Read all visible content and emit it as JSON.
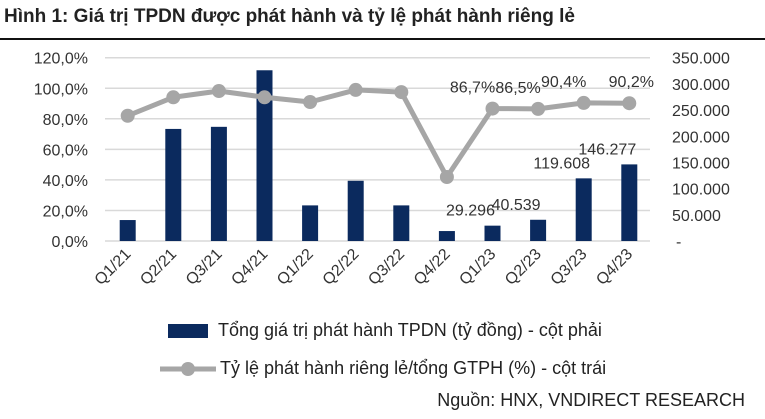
{
  "chart_data": {
    "type": "bar+line",
    "title": "Hình 1: Giá trị TPDN được phát hành và tỷ lệ phát hành riêng lẻ",
    "categories": [
      "Q1/21",
      "Q2/21",
      "Q3/21",
      "Q4/21",
      "Q1/22",
      "Q2/22",
      "Q3/22",
      "Q4/22",
      "Q1/23",
      "Q2/23",
      "Q3/23",
      "Q4/23"
    ],
    "series": [
      {
        "name": "Tổng giá trị phát hành TPDN (tỷ đồng) - cột phải",
        "type": "bar",
        "axis": "right",
        "color": "#0b2a5e",
        "values": [
          40000,
          214000,
          218000,
          326000,
          68000,
          115000,
          68000,
          19000,
          29296,
          40539,
          119608,
          146277
        ],
        "labels": [
          null,
          null,
          null,
          null,
          null,
          null,
          null,
          null,
          "29.296",
          "40.539",
          "119.608",
          "146.277"
        ]
      },
      {
        "name": "Tỷ lệ phát hành riêng lẻ/tổng GTPH (%) - cột trái",
        "type": "line",
        "axis": "left",
        "color": "#a6a6a6",
        "values": [
          82.0,
          94.1,
          98.2,
          94.1,
          91.0,
          98.9,
          97.5,
          41.9,
          86.7,
          86.5,
          90.4,
          90.2
        ],
        "labels": [
          null,
          null,
          null,
          null,
          null,
          null,
          null,
          null,
          "86,7%",
          "86,5%",
          "90,4%",
          "90,2%"
        ]
      }
    ],
    "left_axis": {
      "range": [
        0,
        120
      ],
      "ticks": [
        "0,0%",
        "20,0%",
        "40,0%",
        "60,0%",
        "80,0%",
        "100,0%",
        "120,0%"
      ]
    },
    "right_axis": {
      "range": [
        0,
        350000
      ],
      "ticks": [
        "-",
        "50.000",
        "100.000",
        "150.000",
        "200.000",
        "250.000",
        "300.000",
        "350.000"
      ]
    },
    "grid": true,
    "legend_position": "bottom"
  },
  "source": "Nguồn:  HNX, VNDIRECT RESEARCH"
}
